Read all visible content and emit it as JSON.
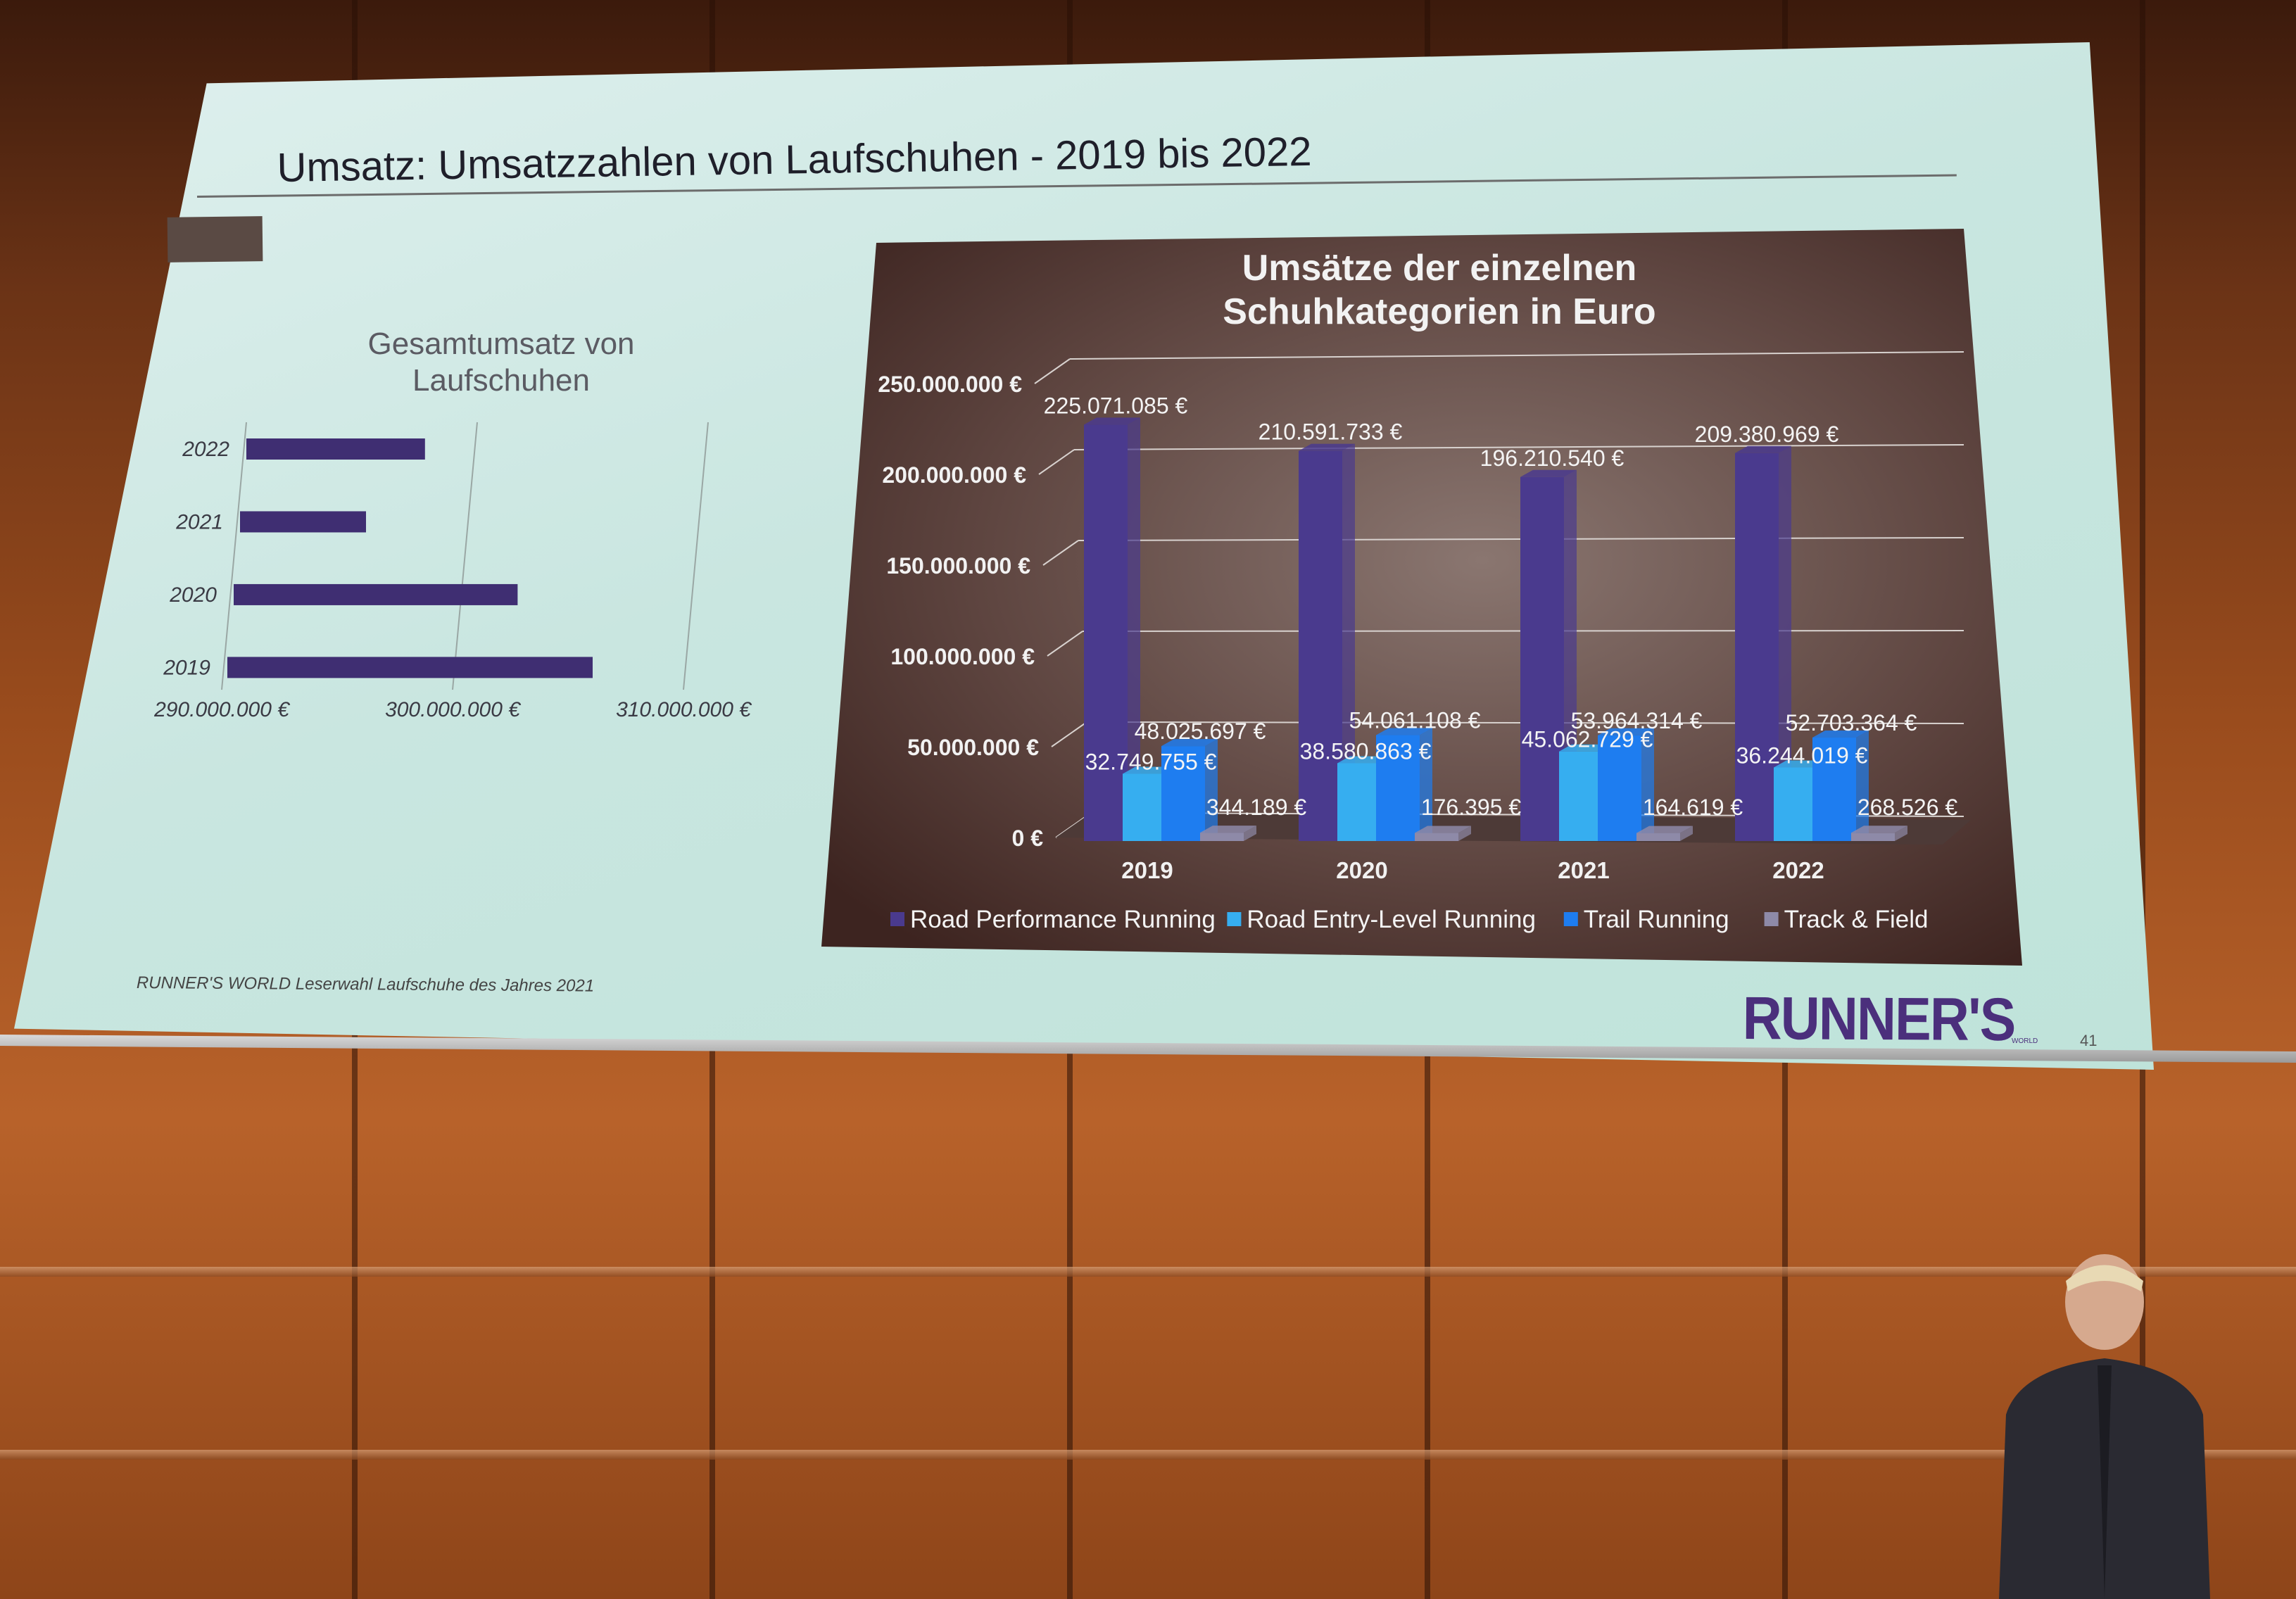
{
  "slide": {
    "title": "Umsatz: Umsatzzahlen von Laufschuhen - 2019 bis 2022",
    "footnote": "RUNNER'S WORLD Leserwahl Laufschuhe des Jahres 2021",
    "brand": "RUNNER'S",
    "brand_sub": "WORLD",
    "page_number": "41"
  },
  "colors": {
    "road_performance": "#4a3a8e",
    "road_entry": "#36aef0",
    "trail": "#1e7df0",
    "track_field": "#8e8aa8",
    "left_bar": "#3f2e72"
  },
  "chart_data": [
    {
      "type": "bar",
      "orientation": "horizontal",
      "title": "Gesamtumsatz von Laufschuhen",
      "categories": [
        "2022",
        "2021",
        "2020",
        "2019"
      ],
      "values": [
        298200000,
        296000000,
        302600000,
        306000000
      ],
      "xlim": [
        290000000,
        310000000
      ],
      "x_ticks": [
        "290.000.000 €",
        "300.000.000 €",
        "310.000.000 €"
      ],
      "grid": true
    },
    {
      "type": "bar",
      "orientation": "vertical",
      "style": "3d-clustered",
      "title": "Umsätze der einzelnen Schuhkategorien in Euro",
      "categories": [
        "2019",
        "2020",
        "2021",
        "2022"
      ],
      "ylim": [
        0,
        250000000
      ],
      "y_ticks": [
        "0 €",
        "50.000.000 €",
        "100.000.000 €",
        "150.000.000 €",
        "200.000.000 €",
        "250.000.000 €"
      ],
      "legend_position": "bottom",
      "grid": true,
      "series": [
        {
          "name": "Road Performance Running",
          "values": [
            225071085,
            210591733,
            196210540,
            209380969
          ],
          "labels": [
            "225.071.085 €",
            "210.591.733 €",
            "196.210.540 €",
            "209.380.969 €"
          ]
        },
        {
          "name": "Road Entry-Level Running",
          "values": [
            32749755,
            38580863,
            45062729,
            36244019
          ],
          "labels": [
            "32.749.755 €",
            "38.580.863 €",
            "45.062.729 €",
            "36.244.019 €"
          ]
        },
        {
          "name": "Trail Running",
          "values": [
            48025697,
            54061108,
            53964314,
            52703364
          ],
          "labels": [
            "48.025.697 €",
            "54.061.108 €",
            "53.964.314 €",
            "52.703.364 €"
          ]
        },
        {
          "name": "Track & Field",
          "values": [
            344189,
            176395,
            164619,
            268526
          ],
          "labels": [
            "344.189 €",
            "176.395 €",
            "164.619 €",
            "268.526 €"
          ]
        }
      ]
    }
  ]
}
